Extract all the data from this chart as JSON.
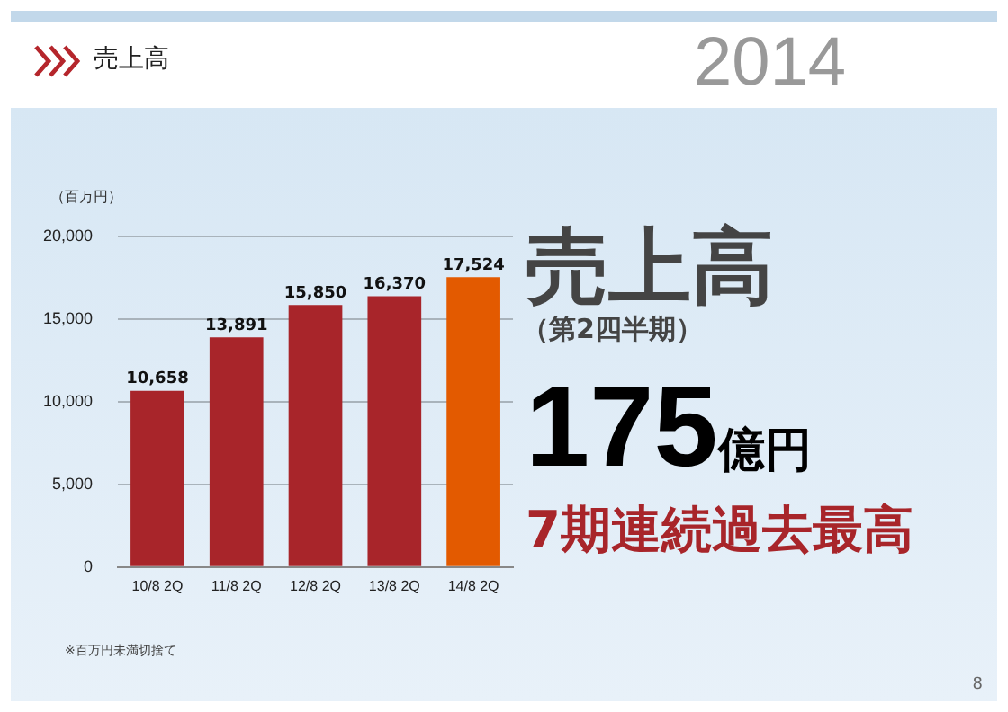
{
  "chart_data": {
    "type": "bar",
    "title": "売上高",
    "ylabel": "（百万円）",
    "categories": [
      "10/8 2Q",
      "11/8 2Q",
      "12/8 2Q",
      "13/8 2Q",
      "14/8 2Q"
    ],
    "values": [
      10658,
      13891,
      15850,
      16370,
      17524
    ],
    "colors": [
      "#a8252a",
      "#a8252a",
      "#a8252a",
      "#a8252a",
      "#e35a00"
    ],
    "ylim": [
      0,
      20000
    ],
    "yticks": [
      {
        "value": 0,
        "label": "0"
      },
      {
        "value": 5000,
        "label": "5,000"
      },
      {
        "value": 10000,
        "label": "10,000"
      },
      {
        "value": 15000,
        "label": "15,000"
      },
      {
        "value": 20000,
        "label": "20,000"
      }
    ],
    "value_labels": [
      "10,658",
      "13,891",
      "15,850",
      "16,370",
      "17,524"
    ],
    "grid": "y",
    "legend": false,
    "annotations": [
      "2014",
      "売上高",
      "（第2四半期）",
      "175億円",
      "7期連続過去最高",
      "※百万円未満切捨て",
      "8"
    ]
  }
}
